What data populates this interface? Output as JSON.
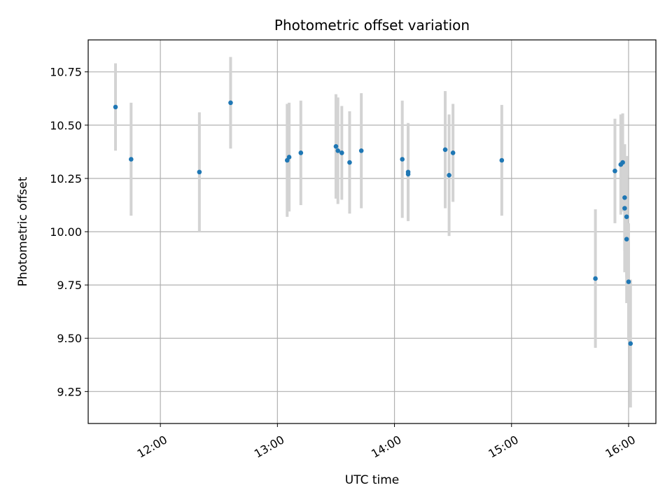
{
  "chart_data": {
    "type": "scatter",
    "title": "Photometric offset variation",
    "xlabel": "UTC time",
    "ylabel": "Photometric offset",
    "xlim": [
      "11:23",
      "16:14"
    ],
    "ylim": [
      9.1,
      10.9
    ],
    "xticks": [
      "12:00",
      "13:00",
      "14:00",
      "15:00",
      "16:00"
    ],
    "yticks": [
      9.25,
      9.5,
      9.75,
      10.0,
      10.25,
      10.5,
      10.75
    ],
    "ytick_labels": [
      "9.25",
      "9.50",
      "9.75",
      "10.00",
      "10.25",
      "10.50",
      "10.75"
    ],
    "grid": true,
    "point_color": "#1f77b4",
    "errorbar_color": "#d3d3d3",
    "points": [
      {
        "x": "11:37",
        "y": 10.585,
        "err": 0.205
      },
      {
        "x": "11:45",
        "y": 10.34,
        "err": 0.265
      },
      {
        "x": "12:20",
        "y": 10.28,
        "err": 0.28
      },
      {
        "x": "12:36",
        "y": 10.605,
        "err": 0.215
      },
      {
        "x": "13:05",
        "y": 10.335,
        "err": 0.265
      },
      {
        "x": "13:06",
        "y": 10.35,
        "err": 0.255
      },
      {
        "x": "13:12",
        "y": 10.37,
        "err": 0.245
      },
      {
        "x": "13:30",
        "y": 10.4,
        "err": 0.245
      },
      {
        "x": "13:31",
        "y": 10.38,
        "err": 0.25
      },
      {
        "x": "13:33",
        "y": 10.37,
        "err": 0.22
      },
      {
        "x": "13:37",
        "y": 10.325,
        "err": 0.24
      },
      {
        "x": "13:43",
        "y": 10.38,
        "err": 0.27
      },
      {
        "x": "14:04",
        "y": 10.34,
        "err": 0.275
      },
      {
        "x": "14:07",
        "y": 10.28,
        "err": 0.23
      },
      {
        "x": "14:07",
        "y": 10.27,
        "err": 0.22
      },
      {
        "x": "14:26",
        "y": 10.385,
        "err": 0.275
      },
      {
        "x": "14:28",
        "y": 10.265,
        "err": 0.285
      },
      {
        "x": "14:30",
        "y": 10.37,
        "err": 0.23
      },
      {
        "x": "14:55",
        "y": 10.335,
        "err": 0.26
      },
      {
        "x": "15:43",
        "y": 9.78,
        "err": 0.325
      },
      {
        "x": "15:53",
        "y": 10.285,
        "err": 0.245
      },
      {
        "x": "15:56",
        "y": 10.315,
        "err": 0.235
      },
      {
        "x": "15:57",
        "y": 10.325,
        "err": 0.23
      },
      {
        "x": "15:58",
        "y": 10.16,
        "err": 0.25
      },
      {
        "x": "15:58",
        "y": 10.11,
        "err": 0.3
      },
      {
        "x": "15:59",
        "y": 10.07,
        "err": 0.285
      },
      {
        "x": "15:59",
        "y": 9.965,
        "err": 0.3
      },
      {
        "x": "16:00",
        "y": 9.765,
        "err": 0.275
      },
      {
        "x": "16:01",
        "y": 9.475,
        "err": 0.3
      }
    ]
  }
}
